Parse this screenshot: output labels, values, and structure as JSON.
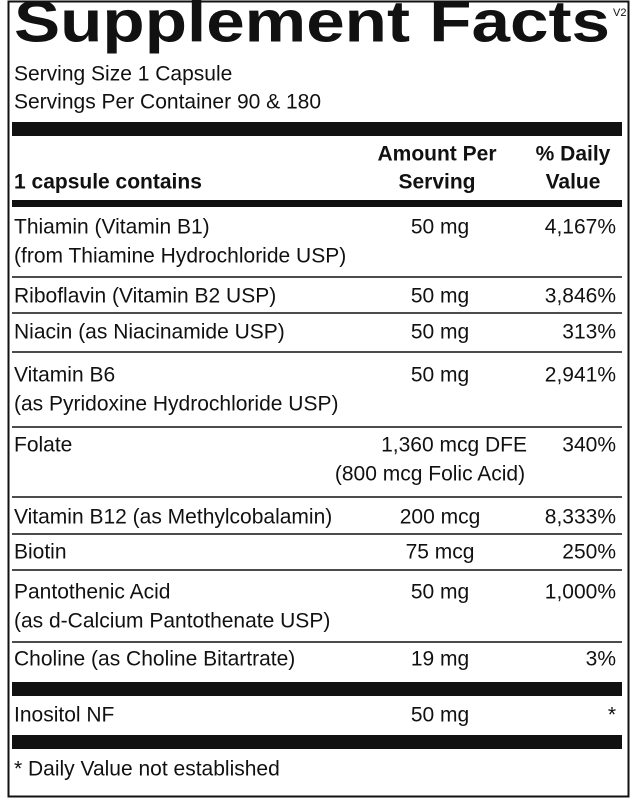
{
  "title": "Supplement Facts",
  "version": "V2",
  "serving_size": "Serving Size 1 Capsule",
  "servings_per_container": "Servings Per Container 90 & 180",
  "table": {
    "header": {
      "label": "1 capsule contains",
      "amount": [
        "Amount Per",
        "Serving"
      ],
      "dv": [
        "% Daily",
        "Value"
      ]
    },
    "rows": [
      {
        "name": [
          "Thiamin (Vitamin B1)",
          "(from Thiamine Hydrochloride USP)"
        ],
        "amount": [
          "50 mg"
        ],
        "dv": "4,167%"
      },
      {
        "name": [
          "Riboflavin (Vitamin B2 USP)"
        ],
        "amount": [
          "50 mg"
        ],
        "dv": "3,846%"
      },
      {
        "name": [
          "Niacin (as Niacinamide USP)"
        ],
        "amount": [
          "50 mg"
        ],
        "dv": "313%"
      },
      {
        "name": [
          "Vitamin B6",
          "(as Pyridoxine Hydrochloride USP)"
        ],
        "amount": [
          "50 mg"
        ],
        "dv": "2,941%"
      },
      {
        "name": [
          "Folate"
        ],
        "amount": [
          "1,360 mcg DFE",
          "(800 mcg Folic Acid)"
        ],
        "dv": "340%"
      },
      {
        "name": [
          "Vitamin B12 (as Methylcobalamin)"
        ],
        "amount": [
          "200 mcg"
        ],
        "dv": "8,333%"
      },
      {
        "name": [
          "Biotin"
        ],
        "amount": [
          "75 mcg"
        ],
        "dv": "250%"
      },
      {
        "name": [
          "Pantothenic Acid",
          "(as d-Calcium Pantothenate USP)"
        ],
        "amount": [
          "50 mg"
        ],
        "dv": "1,000%"
      },
      {
        "name": [
          "Choline (as Choline Bitartrate)"
        ],
        "amount": [
          "19 mg"
        ],
        "dv": "3%"
      }
    ],
    "other_rows": [
      {
        "name": [
          "Inositol NF"
        ],
        "amount": [
          "50 mg"
        ],
        "dv": "*"
      }
    ]
  },
  "footnote": "* Daily Value not established"
}
